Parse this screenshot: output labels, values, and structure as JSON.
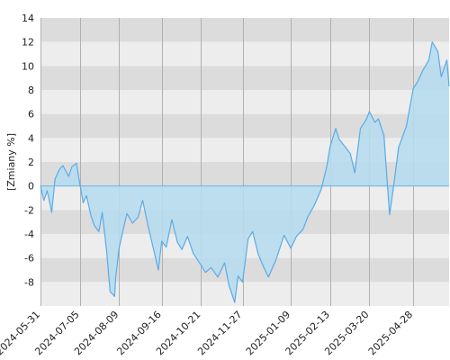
{
  "chart_data": {
    "type": "area",
    "title": "",
    "xlabel": "",
    "ylabel": "[Zmiany %]",
    "ylim": [
      -10,
      14
    ],
    "yticks": [
      -8,
      -6,
      -4,
      -2,
      0,
      2,
      4,
      6,
      8,
      10,
      12,
      14
    ],
    "xlim": [
      "2024-05-31",
      "2025-05-30"
    ],
    "xticks": [
      "2024-05-31",
      "2024-07-05",
      "2024-08-09",
      "2024-09-16",
      "2024-10-21",
      "2024-11-27",
      "2025-01-09",
      "2025-02-13",
      "2025-03-20",
      "2025-04-28"
    ],
    "grid": "vertical-lines-and-alternating-bands",
    "colors": {
      "line": "#5aabe8",
      "fill": "#b7dcee",
      "band_dark": "#dcdcdc",
      "band_light": "#ededed",
      "gridline": "#b0b0b0"
    },
    "series": [
      {
        "name": "",
        "x": [
          "2024-05-31",
          "2024-06-03",
          "2024-06-06",
          "2024-06-10",
          "2024-06-13",
          "2024-06-17",
          "2024-06-20",
          "2024-06-25",
          "2024-06-28",
          "2024-07-02",
          "2024-07-05",
          "2024-07-08",
          "2024-07-11",
          "2024-07-15",
          "2024-07-18",
          "2024-07-22",
          "2024-07-25",
          "2024-07-29",
          "2024-08-01",
          "2024-08-05",
          "2024-08-06",
          "2024-08-09",
          "2024-08-13",
          "2024-08-16",
          "2024-08-21",
          "2024-08-26",
          "2024-08-30",
          "2024-09-04",
          "2024-09-09",
          "2024-09-13",
          "2024-09-16",
          "2024-09-20",
          "2024-09-25",
          "2024-09-30",
          "2024-10-04",
          "2024-10-09",
          "2024-10-14",
          "2024-10-21",
          "2024-10-25",
          "2024-10-30",
          "2024-11-05",
          "2024-11-11",
          "2024-11-15",
          "2024-11-20",
          "2024-11-23",
          "2024-11-27",
          "2024-12-02",
          "2024-12-06",
          "2024-12-11",
          "2024-12-16",
          "2024-12-20",
          "2024-12-27",
          "2025-01-03",
          "2025-01-09",
          "2025-01-14",
          "2025-01-20",
          "2025-01-24",
          "2025-01-30",
          "2025-02-05",
          "2025-02-10",
          "2025-02-13",
          "2025-02-18",
          "2025-02-21",
          "2025-02-26",
          "2025-03-03",
          "2025-03-07",
          "2025-03-12",
          "2025-03-17",
          "2025-03-20",
          "2025-03-25",
          "2025-03-28",
          "2025-04-02",
          "2025-04-04",
          "2025-04-07",
          "2025-04-10",
          "2025-04-15",
          "2025-04-22",
          "2025-04-28",
          "2025-05-02",
          "2025-05-07",
          "2025-05-12",
          "2025-05-15",
          "2025-05-20",
          "2025-05-23",
          "2025-05-28",
          "2025-05-30"
        ],
        "y": [
          0,
          -1.2,
          -0.4,
          -2.2,
          0.6,
          1.4,
          1.7,
          0.8,
          1.6,
          1.9,
          0.2,
          -1.4,
          -0.8,
          -2.5,
          -3.3,
          -3.8,
          -2.2,
          -5.5,
          -8.8,
          -9.2,
          -7.6,
          -5.2,
          -3.5,
          -2.3,
          -3.1,
          -2.6,
          -1.2,
          -3.4,
          -5.4,
          -7.0,
          -4.6,
          -5.1,
          -2.8,
          -4.7,
          -5.3,
          -4.2,
          -5.6,
          -6.6,
          -7.2,
          -6.8,
          -7.6,
          -6.4,
          -8.3,
          -9.7,
          -7.5,
          -8.0,
          -4.4,
          -3.8,
          -5.7,
          -6.8,
          -7.6,
          -6.1,
          -4.1,
          -5.2,
          -4.2,
          -3.6,
          -2.6,
          -1.6,
          -0.3,
          1.6,
          3.3,
          4.8,
          3.9,
          3.3,
          2.7,
          1.1,
          4.8,
          5.5,
          6.2,
          5.3,
          5.6,
          4.2,
          1.5,
          -2.4,
          -0.4,
          3.2,
          5.0,
          8.1,
          8.7,
          9.7,
          10.5,
          12.0,
          11.2,
          9.1,
          10.5,
          8.3
        ]
      }
    ]
  }
}
